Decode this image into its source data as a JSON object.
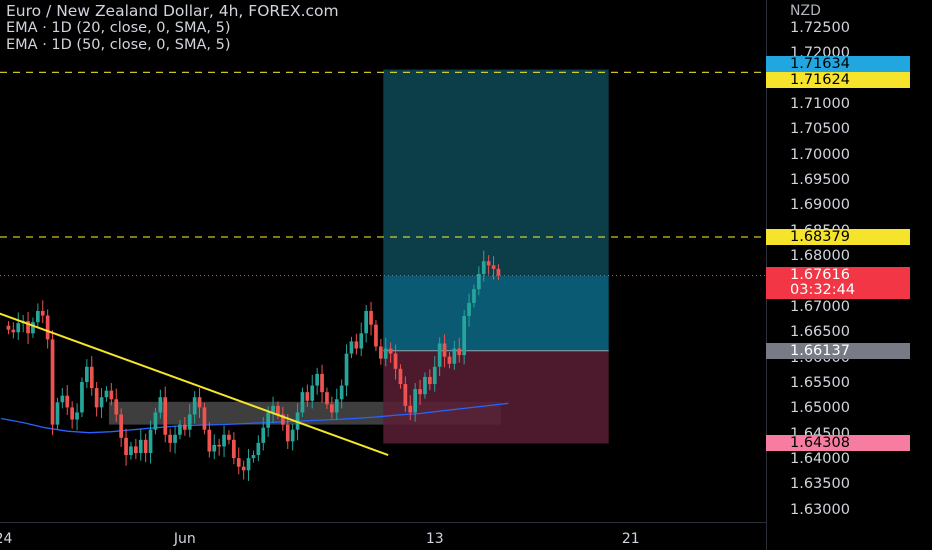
{
  "chart_data": {
    "type": "candlestick",
    "title": "Euro / New Zealand Dollar, 4h, FOREX.com",
    "indicators": [
      "EMA · 1D (20, close, 0, SMA, 5)",
      "EMA · 1D (50, close, 0, SMA, 5)"
    ],
    "currency": "NZD",
    "ylim": [
      1.628,
      1.7305
    ],
    "y_ticks": [
      "1.72500",
      "1.72000",
      "1.71500",
      "1.71000",
      "1.70500",
      "1.70000",
      "1.69500",
      "1.69000",
      "1.68500",
      "1.68000",
      "1.67500",
      "1.67000",
      "1.66500",
      "1.66000",
      "1.65500",
      "1.65000",
      "1.64500",
      "1.64000",
      "1.63500",
      "1.63000"
    ],
    "x_ticks": [
      {
        "label": "24",
        "bar": -1
      },
      {
        "label": "Jun",
        "bar": 36
      },
      {
        "label": "13",
        "bar": 87
      },
      {
        "label": "21",
        "bar": 127
      }
    ],
    "num_bars": 101,
    "closes": [
      1.6655,
      1.665,
      1.6668,
      1.6672,
      1.6648,
      1.667,
      1.6692,
      1.6683,
      1.6636,
      1.6468,
      1.6512,
      1.6525,
      1.6502,
      1.6478,
      1.6492,
      1.6552,
      1.6582,
      1.654,
      1.6502,
      1.6522,
      1.6535,
      1.6518,
      1.6488,
      1.6442,
      1.6408,
      1.6425,
      1.6412,
      1.6438,
      1.6412,
      1.6458,
      1.6492,
      1.6522,
      1.6448,
      1.6432,
      1.6448,
      1.6468,
      1.6458,
      1.6488,
      1.6522,
      1.6502,
      1.6458,
      1.6415,
      1.6428,
      1.6425,
      1.6448,
      1.6438,
      1.6402,
      1.6385,
      1.6378,
      1.6402,
      1.6408,
      1.6432,
      1.6462,
      1.6492,
      1.6505,
      1.6488,
      1.6468,
      1.6435,
      1.6458,
      1.6492,
      1.6532,
      1.6515,
      1.6545,
      1.6568,
      1.6532,
      1.6508,
      1.6492,
      1.6518,
      1.6545,
      1.6608,
      1.6632,
      1.6618,
      1.6648,
      1.6692,
      1.6665,
      1.6622,
      1.6598,
      1.6618,
      1.6608,
      1.6578,
      1.6548,
      1.6505,
      1.6492,
      1.6538,
      1.6528,
      1.6562,
      1.6548,
      1.6582,
      1.6628,
      1.6602,
      1.6588,
      1.6618,
      1.6605,
      1.6682,
      1.6708,
      1.6735,
      1.6765,
      1.679,
      1.6782,
      1.6775,
      1.6762
    ],
    "ema20": [
      1.648,
      1.6472,
      1.6462,
      1.6455,
      1.6452,
      1.6454,
      1.6458,
      1.6462,
      1.6465,
      1.6467,
      1.6468,
      1.647,
      1.6472,
      1.6474,
      1.6476,
      1.6478,
      1.648,
      1.6483,
      1.6487,
      1.649,
      1.6495,
      1.65,
      1.6505,
      1.651
    ],
    "ema20_start_bar": -1,
    "ema20_step": 4.5,
    "trendline": {
      "bars": [
        -3,
        78
      ],
      "prices": [
        1.6693,
        1.6408
      ]
    },
    "resistance_zone": {
      "bars": [
        21,
        101
      ],
      "prices": [
        1.6468,
        1.6513
      ]
    },
    "position": {
      "bars": [
        77,
        123
      ],
      "entry": 1.66137,
      "target": 1.7168,
      "stop": 1.64308
    },
    "dashed_levels": [
      1.71624,
      1.68379
    ],
    "last_price_line": 1.67616,
    "badges": [
      {
        "value": "1.71634",
        "price": 1.71634,
        "color": "#22a6e0"
      },
      {
        "value": "1.71624",
        "price": 1.71624,
        "color": "#f5e42b"
      },
      {
        "value": "1.68379",
        "price": 1.68379,
        "color": "#f5e42b"
      },
      {
        "value": "1.67616",
        "price": 1.67616,
        "sub": "03:32:44",
        "color": "#f23645"
      },
      {
        "value": "1.66137",
        "price": 1.66137,
        "color": "#787b86"
      },
      {
        "value": "1.64308",
        "price": 1.64308,
        "color": "#f77ca1"
      }
    ],
    "colors": {
      "up": "#26a69a",
      "down": "#ef5350",
      "trendline": "#f5e42b",
      "ema": "#2962ff"
    }
  }
}
